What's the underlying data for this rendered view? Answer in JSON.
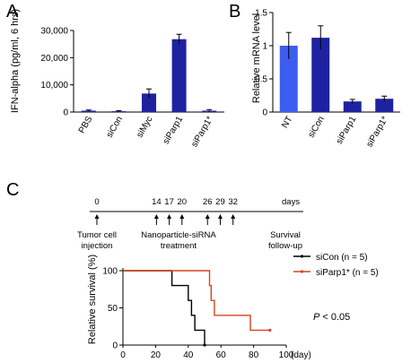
{
  "panels": {
    "a": "A",
    "b": "B",
    "c": "C"
  },
  "chart_data": [
    {
      "type": "bar",
      "panel": "A",
      "ylabel": "IFN-alpha (pg/ml, 6 hrs)",
      "ylim": [
        0,
        30000
      ],
      "yticks": [
        0,
        10000,
        20000,
        30000
      ],
      "ytick_labels": [
        "0",
        "10,000",
        "20,000",
        "30,000"
      ],
      "categories": [
        "PBS",
        "siCon",
        "siMyc",
        "siParp1",
        "siParp1*"
      ],
      "values": [
        500,
        300,
        6800,
        26800,
        500
      ],
      "errors": [
        250,
        200,
        1700,
        1800,
        400
      ],
      "bar_color": "#1f22a0"
    },
    {
      "type": "bar",
      "panel": "B",
      "ylabel": "Relative mRNA level",
      "ylim": [
        0,
        1.5
      ],
      "yticks": [
        0,
        0.5,
        1,
        1.5
      ],
      "ytick_labels": [
        "0",
        "0.5",
        "1",
        "1.5"
      ],
      "categories": [
        "NT",
        "siCon",
        "siParp1",
        "siParp1*"
      ],
      "values": [
        1.0,
        1.12,
        0.16,
        0.2
      ],
      "errors": [
        0.2,
        0.18,
        0.03,
        0.04
      ],
      "colors": [
        "#3d5cf0",
        "#1f22a0",
        "#1f22a0",
        "#1f22a0"
      ]
    },
    {
      "type": "line",
      "panel": "C",
      "xlabel": "(day)",
      "ylabel": "Relative survival (%)",
      "xlim": [
        0,
        100
      ],
      "ylim": [
        0,
        100
      ],
      "xticks": [
        0,
        20,
        40,
        60,
        80,
        100
      ],
      "yticks": [
        0,
        50,
        100
      ],
      "series": [
        {
          "name": "siCon (n = 5)",
          "color": "#000000",
          "steps": [
            [
              0,
              100
            ],
            [
              30,
              100
            ],
            [
              30,
              80
            ],
            [
              40,
              80
            ],
            [
              40,
              60
            ],
            [
              42,
              60
            ],
            [
              42,
              40
            ],
            [
              44,
              40
            ],
            [
              44,
              20
            ],
            [
              50,
              20
            ],
            [
              50,
              0
            ]
          ]
        },
        {
          "name": "siParp1* (n = 5)",
          "color": "#d9431c",
          "steps": [
            [
              0,
              100
            ],
            [
              53,
              100
            ],
            [
              53,
              80
            ],
            [
              54,
              80
            ],
            [
              54,
              60
            ],
            [
              56,
              60
            ],
            [
              56,
              40
            ],
            [
              78,
              40
            ],
            [
              78,
              20
            ],
            [
              90,
              20
            ]
          ]
        }
      ],
      "annotation": {
        "p_symbol": "P",
        "p_text": " < 0.05"
      }
    }
  ],
  "timeline": {
    "days": [
      0,
      14,
      17,
      20,
      26,
      29,
      32
    ],
    "days_label": "days",
    "injection_label": [
      "Tumor cell",
      "injection"
    ],
    "treatment_label": [
      "Nanoparticle-siRNA",
      "treatment"
    ],
    "followup_label": [
      "Survival",
      "follow-up"
    ]
  }
}
